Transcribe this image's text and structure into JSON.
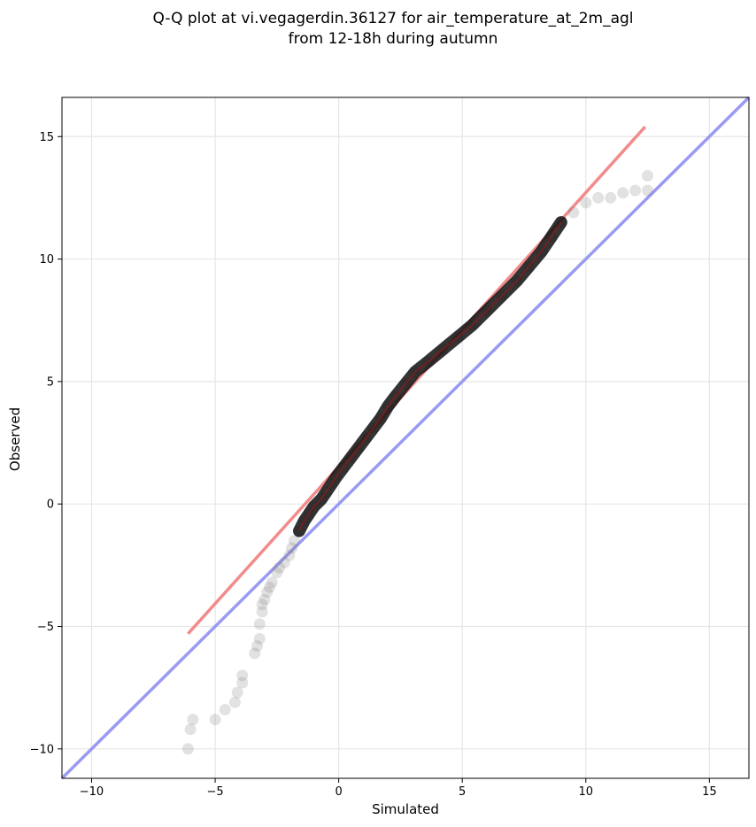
{
  "chart_data": {
    "type": "scatter",
    "title_lines": [
      "Q-Q plot at vi.vegagerdin.36127 for air_temperature_at_2m_agl",
      "from 12-18h during autumn"
    ],
    "xlabel": "Simulated",
    "ylabel": "Observed",
    "xlim": [
      -11.2,
      16.6
    ],
    "ylim": [
      -11.2,
      16.6
    ],
    "xticks": [
      -10,
      -5,
      0,
      5,
      10,
      15
    ],
    "yticks": [
      -10,
      -5,
      0,
      5,
      10,
      15
    ],
    "xtick_labels": [
      "−10",
      "−5",
      "0",
      "5",
      "10",
      "15"
    ],
    "ytick_labels": [
      "−10",
      "−5",
      "0",
      "5",
      "10",
      "15"
    ],
    "grid": true,
    "colors": {
      "points": "#7a7a7a",
      "fit_line": "#f28b8b",
      "identity_line": "#9a9af2",
      "dense_overlay": "#8b1a1a"
    },
    "series": [
      {
        "points": [
          [
            -6.1,
            -10.0
          ],
          [
            -6.0,
            -9.2
          ],
          [
            -5.9,
            -8.8
          ],
          [
            -5.0,
            -8.8
          ],
          [
            -4.6,
            -8.4
          ],
          [
            -4.2,
            -8.1
          ],
          [
            -4.1,
            -7.7
          ],
          [
            -3.9,
            -7.3
          ],
          [
            -3.9,
            -7.0
          ],
          [
            -3.4,
            -6.1
          ],
          [
            -3.3,
            -5.8
          ],
          [
            -3.2,
            -5.5
          ],
          [
            -3.2,
            -4.9
          ],
          [
            -3.1,
            -4.4
          ],
          [
            -3.1,
            -4.1
          ],
          [
            -3.0,
            -3.9
          ],
          [
            -2.9,
            -3.6
          ],
          [
            -2.8,
            -3.4
          ],
          [
            -2.7,
            -3.2
          ],
          [
            -2.5,
            -2.8
          ],
          [
            -2.4,
            -2.6
          ],
          [
            -2.2,
            -2.4
          ],
          [
            -2.0,
            -2.1
          ],
          [
            -1.9,
            -1.8
          ],
          [
            -1.8,
            -1.5
          ],
          [
            -1.6,
            -1.1
          ],
          [
            -1.4,
            -0.7
          ],
          [
            -1.2,
            -0.4
          ],
          [
            -1.0,
            -0.1
          ],
          [
            -0.7,
            0.2
          ],
          [
            -0.5,
            0.5
          ],
          [
            -0.3,
            0.8
          ],
          [
            -0.1,
            1.1
          ],
          [
            0.2,
            1.5
          ],
          [
            0.5,
            1.9
          ],
          [
            0.8,
            2.3
          ],
          [
            1.1,
            2.7
          ],
          [
            1.4,
            3.1
          ],
          [
            1.7,
            3.5
          ],
          [
            2.0,
            4.0
          ],
          [
            2.3,
            4.4
          ],
          [
            2.7,
            4.9
          ],
          [
            3.1,
            5.4
          ],
          [
            3.6,
            5.8
          ],
          [
            4.2,
            6.3
          ],
          [
            4.8,
            6.8
          ],
          [
            5.4,
            7.3
          ],
          [
            6.0,
            7.9
          ],
          [
            6.6,
            8.5
          ],
          [
            7.2,
            9.1
          ],
          [
            7.7,
            9.7
          ],
          [
            8.2,
            10.3
          ],
          [
            8.6,
            10.9
          ],
          [
            9.0,
            11.5
          ],
          [
            9.5,
            11.9
          ],
          [
            10.0,
            12.3
          ],
          [
            10.5,
            12.5
          ],
          [
            11.0,
            12.5
          ],
          [
            11.5,
            12.7
          ],
          [
            12.0,
            12.8
          ],
          [
            12.5,
            12.8
          ],
          [
            12.5,
            13.4
          ]
        ]
      },
      {
        "line": [
          [
            -6.1,
            -5.3
          ],
          [
            12.4,
            15.4
          ]
        ]
      },
      {
        "line": [
          [
            -11.2,
            -11.2
          ],
          [
            16.6,
            16.6
          ]
        ]
      }
    ]
  }
}
